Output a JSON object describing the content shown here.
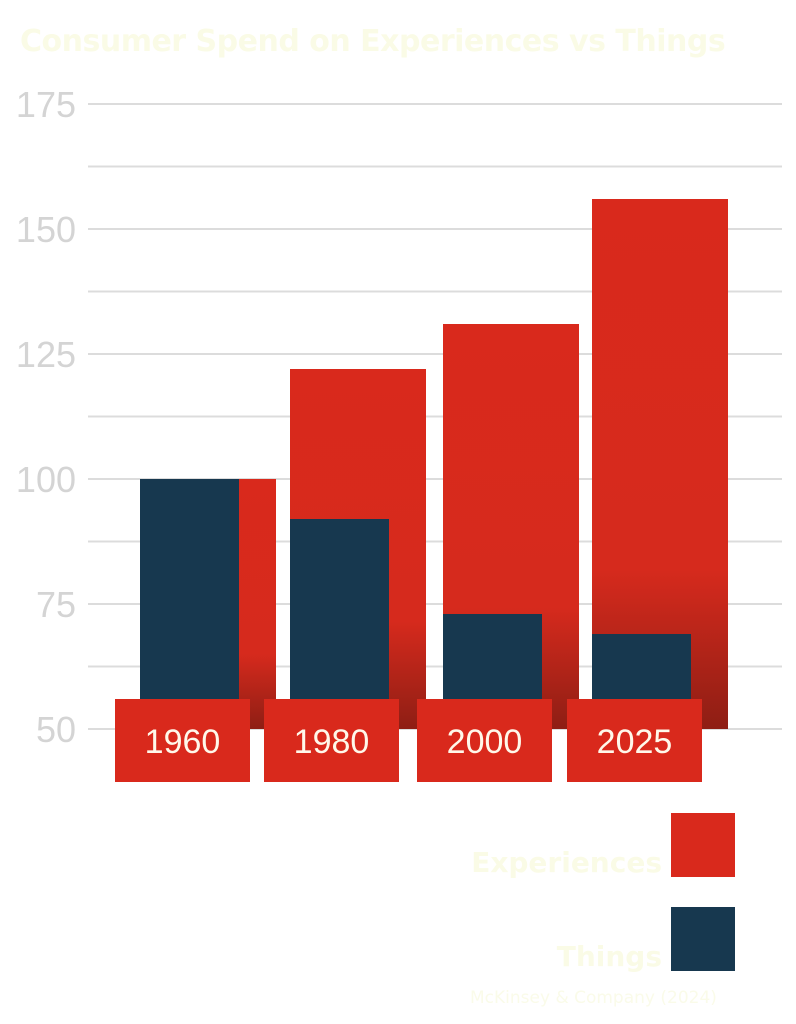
{
  "chart_data": {
    "type": "bar",
    "title": "Consumer Spend on Experiences vs Things",
    "xlabel": "",
    "ylabel": "",
    "categories": [
      "1960",
      "1980",
      "2000",
      "2025"
    ],
    "series": [
      {
        "name": "Experiences",
        "color": "#d9291c",
        "values": [
          100,
          122,
          131,
          156
        ]
      },
      {
        "name": "Things",
        "color": "#17384f",
        "values": [
          100,
          92,
          73,
          69
        ]
      }
    ],
    "ylim": [
      50,
      175
    ],
    "yticks": [
      50,
      75,
      100,
      125,
      150,
      175
    ],
    "grid": true,
    "legend": "bottom-right",
    "source": "McKinsey & Company (2024)"
  }
}
